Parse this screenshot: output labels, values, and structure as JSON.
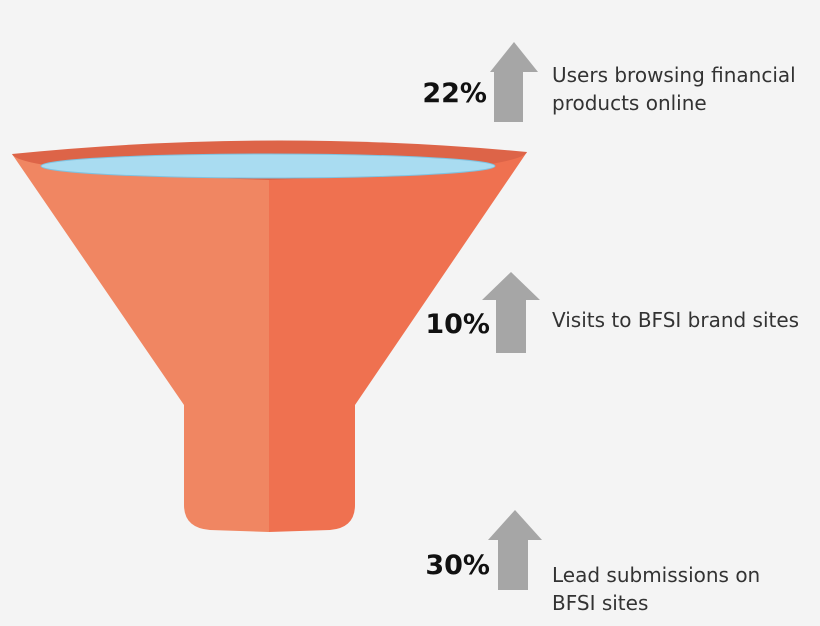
{
  "items": [
    {
      "percent": "22%",
      "label": [
        "Users browsing financial",
        "products online"
      ]
    },
    {
      "percent": "10%",
      "label": [
        "Visits to BFSI brand sites"
      ]
    },
    {
      "percent": "30%",
      "label": [
        "Lead submissions on",
        "BFSI sites"
      ]
    }
  ]
}
